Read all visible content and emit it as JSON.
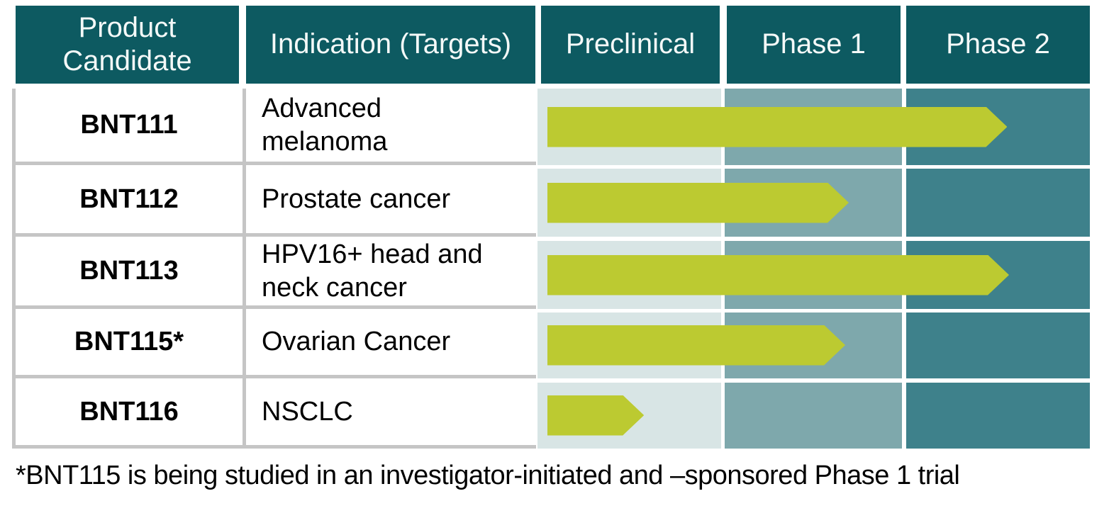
{
  "header": {
    "columns": [
      {
        "lines": [
          "Product",
          "Candidate"
        ]
      },
      {
        "lines": [
          "Indication (Targets)"
        ]
      },
      {
        "lines": [
          "Preclinical"
        ]
      },
      {
        "lines": [
          "Phase 1"
        ]
      },
      {
        "lines": [
          "Phase 2"
        ]
      }
    ]
  },
  "rows": [
    {
      "candidate": "BNT111",
      "indication_lines": [
        "Advanced",
        "melanoma"
      ]
    },
    {
      "candidate": "BNT112",
      "indication_lines": [
        "Prostate cancer"
      ]
    },
    {
      "candidate": "BNT113",
      "indication_lines": [
        "HPV16+ head and",
        "neck cancer"
      ]
    },
    {
      "candidate": "BNT115*",
      "indication_lines": [
        "Ovarian Cancer"
      ]
    },
    {
      "candidate": "BNT116",
      "indication_lines": [
        "NSCLC"
      ]
    }
  ],
  "footnote": "*BNT115 is being studied in an investigator-initiated and –sponsored Phase 1 trial",
  "colors": {
    "header_bg": "#0d5a61",
    "header_text": "#f4f9f8",
    "preclinical_bg": "#d8e5e5",
    "phase1_bg": "#7ea8ac",
    "phase2_bg": "#3e818b",
    "arrow": "#bcca31",
    "grid_line": "#c5c5c5",
    "body_text": "#000000"
  },
  "chart_data": {
    "type": "bar",
    "orientation": "horizontal",
    "title": "",
    "categories": [
      "BNT111",
      "BNT112",
      "BNT113",
      "BNT115*",
      "BNT116"
    ],
    "category_indications": [
      "Advanced melanoma",
      "Prostate cancer",
      "HPV16+ head and neck cancer",
      "Ovarian Cancer",
      "NSCLC"
    ],
    "x_bands": [
      "Preclinical",
      "Phase 1",
      "Phase 2"
    ],
    "values": [
      2.55,
      1.7,
      2.56,
      1.68,
      0.58
    ],
    "scale_note": "phase units: 0-1 Preclinical, 1-2 Phase 1, 2-3 Phase 2; value = arrow tip position",
    "xlim": [
      0,
      3
    ],
    "grid": false,
    "legend": false,
    "bar_color": "#bcca31"
  }
}
